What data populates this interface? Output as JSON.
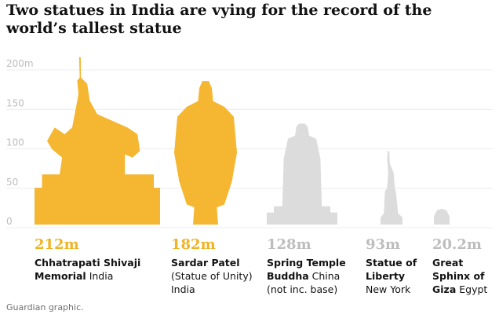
{
  "chart_data": {
    "type": "pictograph",
    "title": "Two statues in India are vying for the record of the world’s tallest statue",
    "categories": [
      "Chhatrapati Shivaji Memorial",
      "Sardar Patel",
      "Spring Temple Buddha",
      "Statue of Liberty",
      "Great Sphinx of Giza"
    ],
    "locations": [
      "India",
      "(Statue of Unity) India",
      "China (not inc. base)",
      "New York",
      "Egypt"
    ],
    "values": [
      212,
      182,
      128,
      93,
      20.2
    ],
    "value_labels": [
      "212m",
      "182m",
      "128m",
      "93m",
      "20.2m"
    ],
    "colors": [
      "#f5b731",
      "#f5b731",
      "#dcdcdc",
      "#dcdcdc",
      "#dcdcdc"
    ],
    "label_colors": [
      "#f0b323",
      "#f0b323",
      "#bdbdbd",
      "#bdbdbd",
      "#bdbdbd"
    ],
    "ylim": [
      0,
      200
    ],
    "yticks": [
      0,
      50,
      100,
      150,
      {
        "value": 200,
        "label": "200m"
      }
    ],
    "grid": true,
    "source": "Guardian graphic."
  }
}
